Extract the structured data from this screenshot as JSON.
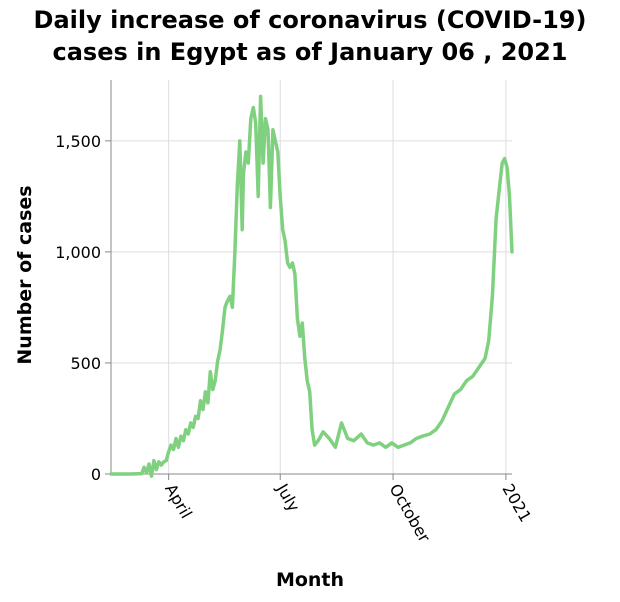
{
  "chart_data": {
    "type": "line",
    "title_lines": [
      "Daily increase of coronavirus (COVID-19)",
      "cases in Egypt as of January 06 , 2021"
    ],
    "xlabel": "Month",
    "ylabel": "Number of cases",
    "x_range": [
      "2020-02-14",
      "2021-01-06"
    ],
    "ylim": [
      0,
      1774
    ],
    "y_ticks": [
      {
        "value": 0,
        "label": "0"
      },
      {
        "value": 500,
        "label": "500"
      },
      {
        "value": 1000,
        "label": "1,000"
      },
      {
        "value": 1500,
        "label": "1,500"
      }
    ],
    "x_ticks": [
      {
        "date": "2020-04-01",
        "label": "April"
      },
      {
        "date": "2020-07-01",
        "label": "July"
      },
      {
        "date": "2020-10-01",
        "label": "October"
      },
      {
        "date": "2021-01-01",
        "label": "2021"
      }
    ],
    "grid": true,
    "series_color": "#7fd17f",
    "series": [
      {
        "x": [
          "2020-02-14",
          "2020-03-01",
          "2020-03-10",
          "2020-03-12",
          "2020-03-14",
          "2020-03-16",
          "2020-03-18",
          "2020-03-20",
          "2020-03-22",
          "2020-03-24",
          "2020-03-26",
          "2020-03-28",
          "2020-03-30",
          "2020-04-01",
          "2020-04-03",
          "2020-04-05",
          "2020-04-07",
          "2020-04-09",
          "2020-04-11",
          "2020-04-13",
          "2020-04-15",
          "2020-04-17",
          "2020-04-19",
          "2020-04-21",
          "2020-04-23",
          "2020-04-25",
          "2020-04-27",
          "2020-04-29",
          "2020-05-01",
          "2020-05-03",
          "2020-05-05",
          "2020-05-07",
          "2020-05-09",
          "2020-05-11",
          "2020-05-13",
          "2020-05-15",
          "2020-05-17",
          "2020-05-19",
          "2020-05-21",
          "2020-05-23",
          "2020-05-25",
          "2020-05-27",
          "2020-05-29",
          "2020-05-31",
          "2020-06-01",
          "2020-06-03",
          "2020-06-05",
          "2020-06-07",
          "2020-06-09",
          "2020-06-11",
          "2020-06-13",
          "2020-06-15",
          "2020-06-17",
          "2020-06-19",
          "2020-06-21",
          "2020-06-23",
          "2020-06-25",
          "2020-06-27",
          "2020-06-29",
          "2020-07-01",
          "2020-07-03",
          "2020-07-05",
          "2020-07-07",
          "2020-07-09",
          "2020-07-11",
          "2020-07-13",
          "2020-07-15",
          "2020-07-17",
          "2020-07-19",
          "2020-07-21",
          "2020-07-23",
          "2020-07-25",
          "2020-07-27",
          "2020-07-29",
          "2020-08-01",
          "2020-08-05",
          "2020-08-10",
          "2020-08-15",
          "2020-08-20",
          "2020-08-25",
          "2020-08-30",
          "2020-09-05",
          "2020-09-10",
          "2020-09-15",
          "2020-09-20",
          "2020-09-25",
          "2020-09-30",
          "2020-10-05",
          "2020-10-10",
          "2020-10-15",
          "2020-10-20",
          "2020-10-25",
          "2020-10-31",
          "2020-11-05",
          "2020-11-10",
          "2020-11-15",
          "2020-11-20",
          "2020-11-25",
          "2020-11-30",
          "2020-12-05",
          "2020-12-10",
          "2020-12-15",
          "2020-12-18",
          "2020-12-21",
          "2020-12-24",
          "2020-12-27",
          "2020-12-29",
          "2020-12-31",
          "2021-01-02",
          "2021-01-04",
          "2021-01-06"
        ],
        "y": [
          0,
          0,
          2,
          30,
          5,
          45,
          -10,
          60,
          20,
          55,
          40,
          55,
          60,
          100,
          130,
          110,
          160,
          120,
          170,
          150,
          200,
          180,
          230,
          210,
          260,
          250,
          330,
          290,
          370,
          320,
          460,
          380,
          420,
          510,
          560,
          650,
          750,
          780,
          800,
          750,
          1000,
          1300,
          1500,
          1100,
          1350,
          1450,
          1400,
          1600,
          1650,
          1580,
          1250,
          1700,
          1400,
          1600,
          1550,
          1200,
          1550,
          1500,
          1450,
          1250,
          1100,
          1050,
          950,
          930,
          950,
          900,
          700,
          620,
          680,
          520,
          420,
          370,
          200,
          130,
          150,
          190,
          160,
          120,
          230,
          160,
          150,
          180,
          140,
          130,
          140,
          120,
          140,
          120,
          130,
          140,
          160,
          170,
          180,
          200,
          240,
          300,
          360,
          380,
          420,
          440,
          480,
          520,
          600,
          800,
          1150,
          1300,
          1400,
          1420,
          1380,
          1250,
          1000
        ]
      }
    ]
  }
}
